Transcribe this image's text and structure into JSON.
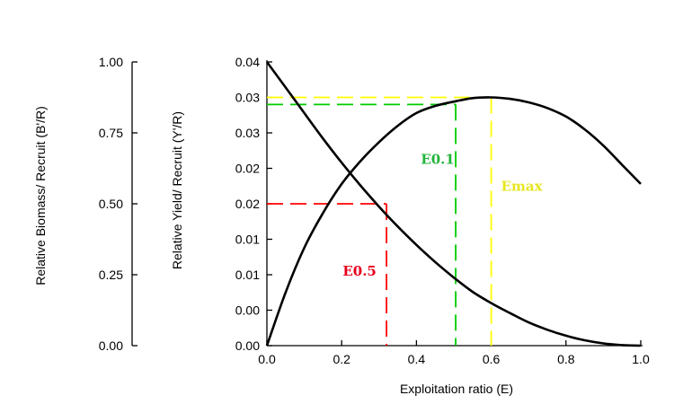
{
  "chart_data": {
    "type": "line",
    "xlabel": "Exploitation ratio (E)",
    "ylabel_left": "Relative Biomass/ Recruit (B'/R)",
    "ylabel_right": "Relative Yield/ Recruit (Y'/R)",
    "xlim": [
      0,
      1
    ],
    "x_ticks": [
      "0.0",
      "0.2",
      "0.4",
      "0.6",
      "0.8",
      "1.0"
    ],
    "left_axis": {
      "ylim": [
        0,
        1
      ],
      "ticks": [
        {
          "value": 0,
          "label": "0.00",
          "color": "#000000"
        },
        {
          "value": 0.25,
          "label": "0.25",
          "color": "#000000"
        },
        {
          "value": 0.5,
          "label": "0.50",
          "color": "#ff0000"
        },
        {
          "value": 0.75,
          "label": "0.75",
          "color": "#000000"
        },
        {
          "value": 1.0,
          "label": "1.00",
          "color": "#000000"
        }
      ]
    },
    "right_axis": {
      "ylim": [
        0,
        0.04
      ],
      "ticks": [
        {
          "value": 0.04,
          "label": "0.04"
        },
        {
          "value": 0.035,
          "label": "0.03"
        },
        {
          "value": 0.03,
          "label": "0.03"
        },
        {
          "value": 0.025,
          "label": "0.02"
        },
        {
          "value": 0.02,
          "label": "0.02"
        },
        {
          "value": 0.015,
          "label": "0.01"
        },
        {
          "value": 0.01,
          "label": "0.01"
        },
        {
          "value": 0.005,
          "label": "0.00"
        },
        {
          "value": 0.0,
          "label": "0.00"
        }
      ]
    },
    "series": [
      {
        "axis": "left",
        "color": "#000000",
        "x": [
          0,
          0.05,
          0.1,
          0.15,
          0.2,
          0.25,
          0.3,
          0.35,
          0.4,
          0.45,
          0.5,
          0.55,
          0.6,
          0.65,
          0.7,
          0.75,
          0.8,
          0.85,
          0.9,
          0.95,
          1.0
        ],
        "y": [
          1.0,
          0.91,
          0.82,
          0.73,
          0.645,
          0.565,
          0.49,
          0.42,
          0.355,
          0.295,
          0.24,
          0.19,
          0.15,
          0.115,
          0.082,
          0.056,
          0.035,
          0.019,
          0.008,
          0.002,
          0.0
        ]
      },
      {
        "axis": "right",
        "color": "#000000",
        "x": [
          0,
          0.05,
          0.1,
          0.15,
          0.2,
          0.25,
          0.3,
          0.35,
          0.4,
          0.45,
          0.5,
          0.55,
          0.6,
          0.65,
          0.7,
          0.75,
          0.8,
          0.85,
          0.9,
          0.95,
          1.0
        ],
        "y": [
          0.0,
          0.0075,
          0.0138,
          0.0187,
          0.0228,
          0.026,
          0.0287,
          0.031,
          0.0328,
          0.0338,
          0.0344,
          0.0349,
          0.035,
          0.0348,
          0.0343,
          0.0335,
          0.0323,
          0.0305,
          0.0282,
          0.0255,
          0.0228
        ]
      }
    ],
    "reference_markers": [
      {
        "label": "E0.5",
        "x": 0.32,
        "y_axis": "left",
        "y": 0.5,
        "color": "#ff0000",
        "label_color": "#e8001c"
      },
      {
        "label": "E0.1",
        "x": 0.505,
        "y_axis": "right",
        "y": 0.034,
        "color": "#00cc00",
        "label_color": "#22b33a"
      },
      {
        "label": "Emax",
        "x": 0.6,
        "y_axis": "right",
        "y": 0.035,
        "color": "#ffff00",
        "label_color": "#e6e620"
      }
    ],
    "grid": false,
    "legend": "none"
  }
}
